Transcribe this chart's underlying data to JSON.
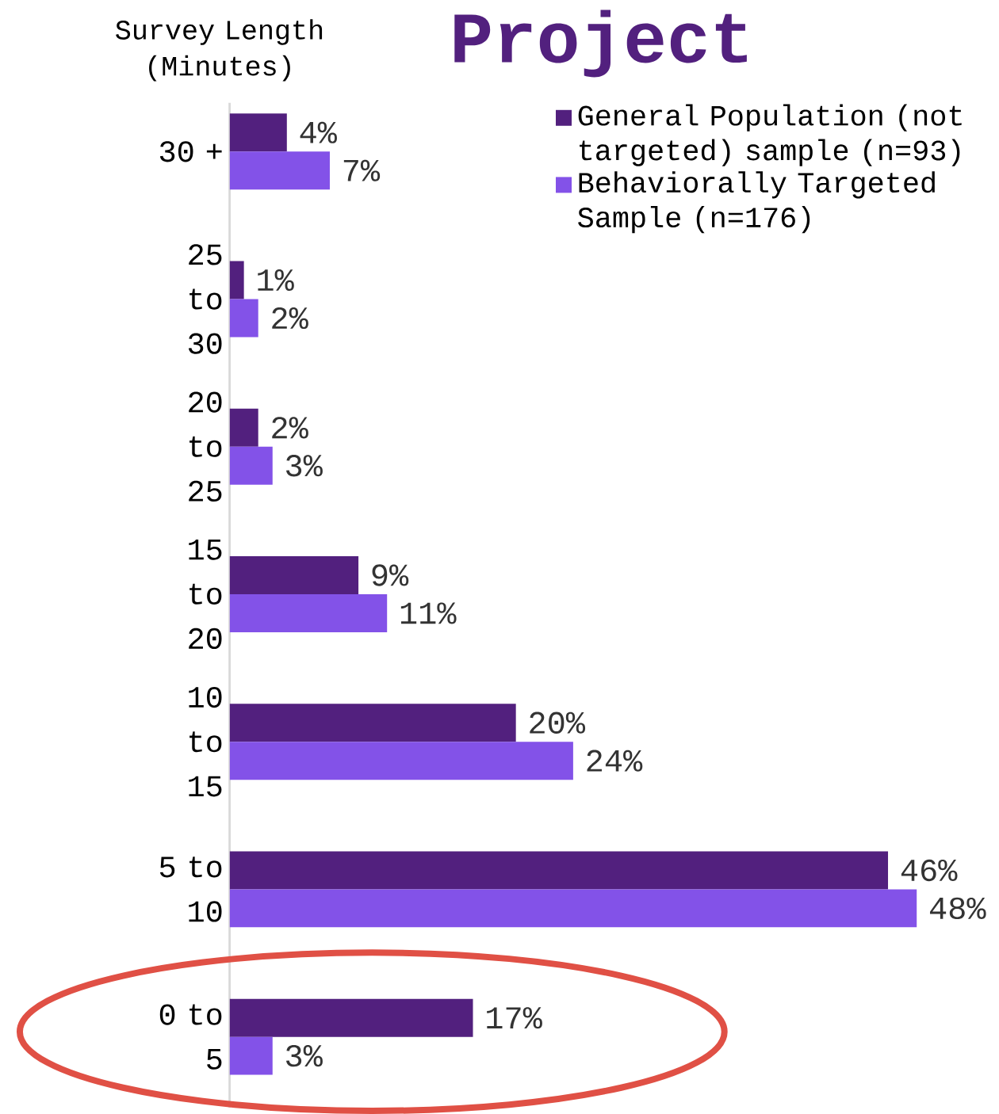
{
  "chart_data": {
    "type": "bar",
    "orientation": "horizontal",
    "title": "Project",
    "ylabel": "Survey Length (Minutes)",
    "categories": [
      "30 +",
      "25 to 30",
      "20 to 25",
      "15 to 20",
      "10 to 15",
      "5 to 10",
      "0 to 5"
    ],
    "series": [
      {
        "name": "General Population (not targeted) sample (n=93)",
        "color": "#52207e",
        "values": [
          4,
          1,
          2,
          9,
          20,
          46,
          17
        ],
        "value_labels": [
          "4%",
          "1%",
          "2%",
          "9%",
          "20%",
          "46%",
          "17%"
        ]
      },
      {
        "name": "Behaviorally Targeted Sample (n=176)",
        "color": "#8352e8",
        "values": [
          7,
          2,
          3,
          11,
          24,
          48,
          3
        ],
        "value_labels": [
          "7%",
          "2%",
          "3%",
          "11%",
          "24%",
          "48%",
          "3%"
        ]
      }
    ],
    "legend": "top right"
  }
}
